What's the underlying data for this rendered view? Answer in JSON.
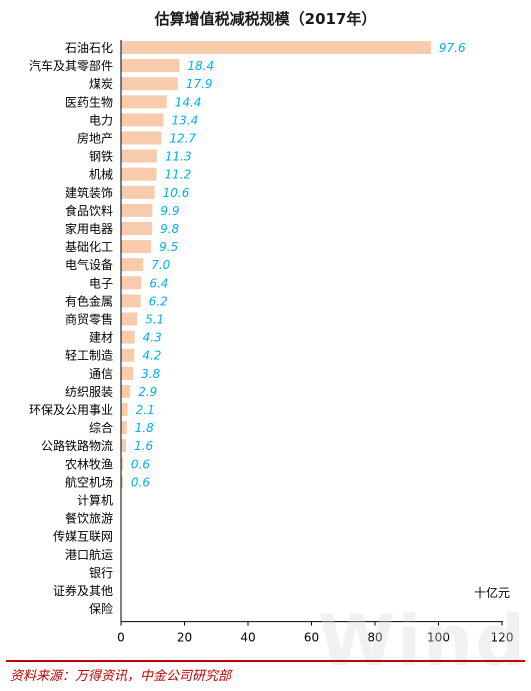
{
  "chart_data": {
    "type": "bar",
    "orientation": "horizontal",
    "title": "估算增值税减税规模（2017年）",
    "unit_label": "十亿元",
    "categories": [
      "石油石化",
      "汽车及其零部件",
      "煤炭",
      "医药生物",
      "电力",
      "房地产",
      "钢铁",
      "机械",
      "建筑装饰",
      "食品饮料",
      "家用电器",
      "基础化工",
      "电气设备",
      "电子",
      "有色金属",
      "商贸零售",
      "建材",
      "轻工制造",
      "通信",
      "纺织服装",
      "环保及公用事业",
      "综合",
      "公路铁路物流",
      "农林牧渔",
      "航空机场",
      "计算机",
      "餐饮旅游",
      "传媒互联网",
      "港口航运",
      "银行",
      "证券及其他",
      "保险"
    ],
    "values": [
      97.6,
      18.4,
      17.9,
      14.4,
      13.4,
      12.7,
      11.3,
      11.2,
      10.6,
      9.9,
      9.8,
      9.5,
      7.0,
      6.4,
      6.2,
      5.1,
      4.3,
      4.2,
      3.8,
      2.9,
      2.1,
      1.8,
      1.6,
      0.6,
      0.6,
      null,
      null,
      null,
      null,
      null,
      null,
      null
    ],
    "value_labels": [
      "97.6",
      "18.4",
      "17.9",
      "14.4",
      "13.4",
      "12.7",
      "11.3",
      "11.2",
      "10.6",
      "9.9",
      "9.8",
      "9.5",
      "7.0",
      "6.4",
      "6.2",
      "5.1",
      "4.3",
      "4.2",
      "3.8",
      "2.9",
      "2.1",
      "1.8",
      "1.6",
      "0.6",
      "0.6",
      "",
      "",
      "",
      "",
      "",
      "",
      ""
    ],
    "xlim": [
      0,
      120
    ],
    "xticks": [
      "0",
      "20",
      "40",
      "60",
      "80",
      "100",
      "120"
    ],
    "grid": false,
    "legend": "none",
    "bar_color": "#f8cbad",
    "label_color": "#00b0f0"
  },
  "watermark": "Wind",
  "source": "资料来源：万得资讯，中金公司研究部"
}
